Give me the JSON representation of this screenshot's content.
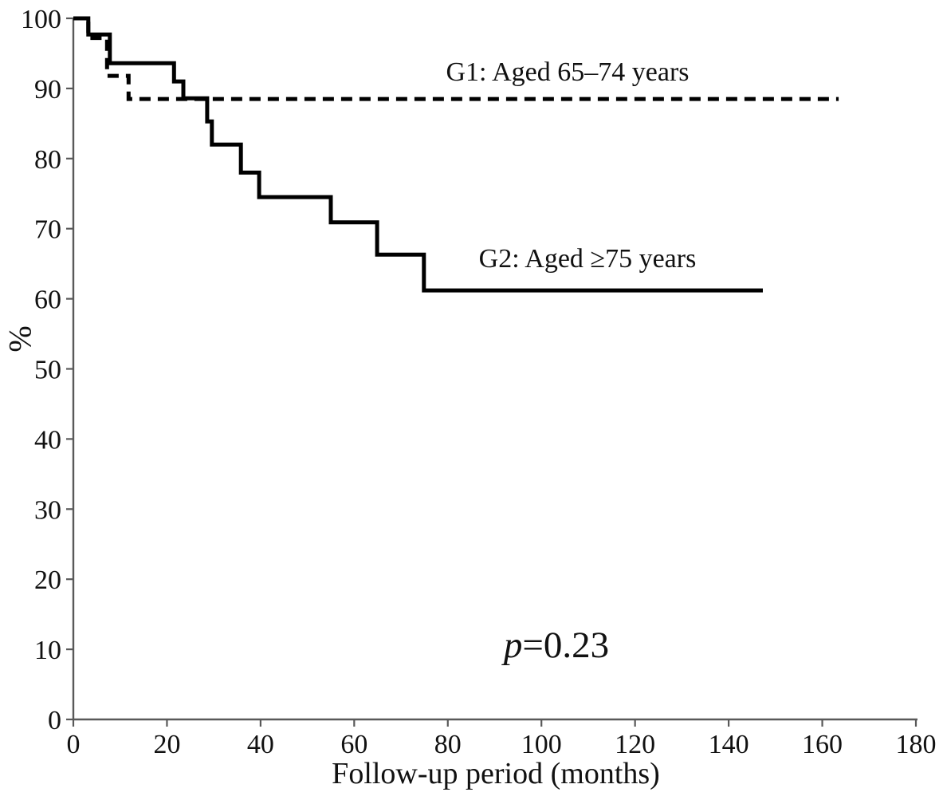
{
  "figure": {
    "background_color": "#ffffff",
    "curve_color": "#000000",
    "axis_color": "#595959",
    "text_color": "#111111"
  },
  "labels": {
    "y_axis": "%",
    "x_axis": "Follow-up period (months)",
    "g1": "G1: Aged 65–74 years",
    "g2": "G2: Aged ≥75 years",
    "p_symbol": "p",
    "p_rest": "=0.23"
  },
  "chart_data": {
    "type": "line",
    "subtype": "kaplan-meier-step",
    "title": "",
    "xlabel": "Follow-up period (months)",
    "ylabel": "%",
    "xlim": [
      0,
      180
    ],
    "ylim": [
      0,
      100
    ],
    "x_ticks": [
      0,
      20,
      40,
      60,
      80,
      100,
      120,
      140,
      160,
      180
    ],
    "y_ticks": [
      0,
      10,
      20,
      30,
      40,
      50,
      60,
      70,
      80,
      90,
      100
    ],
    "grid": false,
    "legend_position": "inline-annotations",
    "annotations": [
      {
        "text": "p=0.23",
        "x_months": 103,
        "y_percent": 10
      },
      {
        "text": "G1: Aged 65–74 years",
        "x_months": 105,
        "y_percent": 92
      },
      {
        "text": "G2: Aged ≥75 years",
        "x_months": 110,
        "y_percent": 65
      }
    ],
    "series": [
      {
        "name": "G1: Aged 65–74 years",
        "style": "dashed",
        "color": "#000000",
        "points": [
          [
            0,
            100
          ],
          [
            3.2,
            100
          ],
          [
            3.2,
            97.2
          ],
          [
            7.2,
            97.2
          ],
          [
            7.2,
            91.8
          ],
          [
            11.8,
            91.8
          ],
          [
            11.8,
            88.5
          ],
          [
            163.5,
            88.5
          ]
        ]
      },
      {
        "name": "G2: Aged ≥75 years",
        "style": "solid",
        "color": "#000000",
        "points": [
          [
            0,
            100
          ],
          [
            3.2,
            100
          ],
          [
            3.2,
            97.7
          ],
          [
            7.8,
            97.7
          ],
          [
            7.8,
            93.6
          ],
          [
            21.5,
            93.6
          ],
          [
            21.5,
            91.0
          ],
          [
            23.5,
            91.0
          ],
          [
            23.5,
            88.6
          ],
          [
            28.6,
            88.6
          ],
          [
            28.6,
            85.3
          ],
          [
            29.6,
            85.3
          ],
          [
            29.6,
            82.0
          ],
          [
            35.8,
            82.0
          ],
          [
            35.8,
            78.0
          ],
          [
            39.7,
            78.0
          ],
          [
            39.7,
            74.5
          ],
          [
            55.0,
            74.5
          ],
          [
            55.0,
            70.9
          ],
          [
            64.9,
            70.9
          ],
          [
            64.9,
            66.3
          ],
          [
            74.9,
            66.3
          ],
          [
            74.9,
            61.2
          ],
          [
            147.3,
            61.2
          ]
        ]
      }
    ]
  }
}
